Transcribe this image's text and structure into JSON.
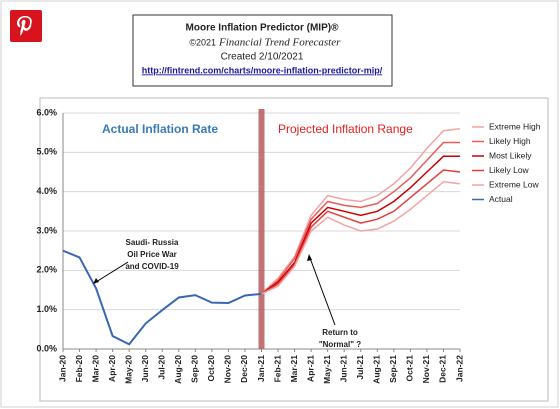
{
  "chart_data": {
    "type": "line",
    "title": "Moore Inflation Predictor (MIP)®",
    "copyright": "©2021",
    "subtitle": "Financial Trend Forecaster",
    "created": "Created  2/10/2021",
    "link": "http://fintrend.com/charts/moore-inflation-predictor-mip/",
    "annotations": {
      "actual": "Actual Inflation Rate",
      "projected": "Projected Inflation Range",
      "covid": [
        "Saudi- Russia",
        "Oil Price War",
        "and COVID-19"
      ],
      "normal": [
        "Return to",
        "\"Normal\" ?"
      ]
    },
    "categories": [
      "Jan-20",
      "Feb-20",
      "Mar-20",
      "Apr-20",
      "May-20",
      "Jun-20",
      "Jul-20",
      "Aug-20",
      "Sep-20",
      "Oct-20",
      "Nov-20",
      "Dec-20",
      "Jan-21",
      "Feb-21",
      "Mar-21",
      "Apr-21",
      "May-21",
      "Jun-21",
      "Jul-21",
      "Aug-21",
      "Sep-21",
      "Oct-21",
      "Nov-21",
      "Dec-21",
      "Jan-22"
    ],
    "series": [
      {
        "name": "Extreme High",
        "color": "#f4a3a3",
        "values": [
          null,
          null,
          null,
          null,
          null,
          null,
          null,
          null,
          null,
          null,
          null,
          null,
          1.4,
          1.8,
          2.35,
          3.4,
          3.9,
          3.8,
          3.75,
          3.9,
          4.2,
          4.6,
          5.1,
          5.55,
          5.6
        ]
      },
      {
        "name": "Likely High",
        "color": "#ec5b5b",
        "values": [
          null,
          null,
          null,
          null,
          null,
          null,
          null,
          null,
          null,
          null,
          null,
          null,
          1.4,
          1.75,
          2.3,
          3.3,
          3.75,
          3.65,
          3.6,
          3.7,
          4.0,
          4.35,
          4.8,
          5.25,
          5.25
        ]
      },
      {
        "name": "Most Likely",
        "color": "#c80000",
        "values": [
          null,
          null,
          null,
          null,
          null,
          null,
          null,
          null,
          null,
          null,
          null,
          null,
          1.4,
          1.7,
          2.2,
          3.2,
          3.6,
          3.5,
          3.4,
          3.5,
          3.75,
          4.1,
          4.5,
          4.9,
          4.9
        ]
      },
      {
        "name": "Likely Low",
        "color": "#e83a3a",
        "values": [
          null,
          null,
          null,
          null,
          null,
          null,
          null,
          null,
          null,
          null,
          null,
          null,
          1.4,
          1.65,
          2.15,
          3.1,
          3.5,
          3.35,
          3.2,
          3.3,
          3.5,
          3.85,
          4.2,
          4.55,
          4.5
        ]
      },
      {
        "name": "Extreme Low",
        "color": "#f4a3a3",
        "values": [
          null,
          null,
          null,
          null,
          null,
          null,
          null,
          null,
          null,
          null,
          null,
          null,
          1.4,
          1.6,
          2.1,
          3.0,
          3.35,
          3.15,
          3.0,
          3.05,
          3.25,
          3.55,
          3.9,
          4.25,
          4.2
        ]
      },
      {
        "name": "Actual",
        "color": "#3a67b0",
        "values": [
          2.5,
          2.33,
          1.54,
          0.33,
          0.12,
          0.65,
          0.99,
          1.31,
          1.37,
          1.18,
          1.17,
          1.36,
          1.4,
          null,
          null,
          null,
          null,
          null,
          null,
          null,
          null,
          null,
          null,
          null,
          null
        ]
      }
    ],
    "ylim": [
      0,
      6
    ],
    "yticks": [
      {
        "value": 0,
        "label": "0.0%"
      },
      {
        "value": 1,
        "label": "1.0%"
      },
      {
        "value": 2,
        "label": "2.0%"
      },
      {
        "value": 3,
        "label": "3.0%"
      },
      {
        "value": 4,
        "label": "4.0%"
      },
      {
        "value": 5,
        "label": "5.0%"
      },
      {
        "value": 6,
        "label": "6.0%"
      }
    ],
    "grid": true,
    "legend": "right",
    "divider_at": "Jan-21"
  }
}
